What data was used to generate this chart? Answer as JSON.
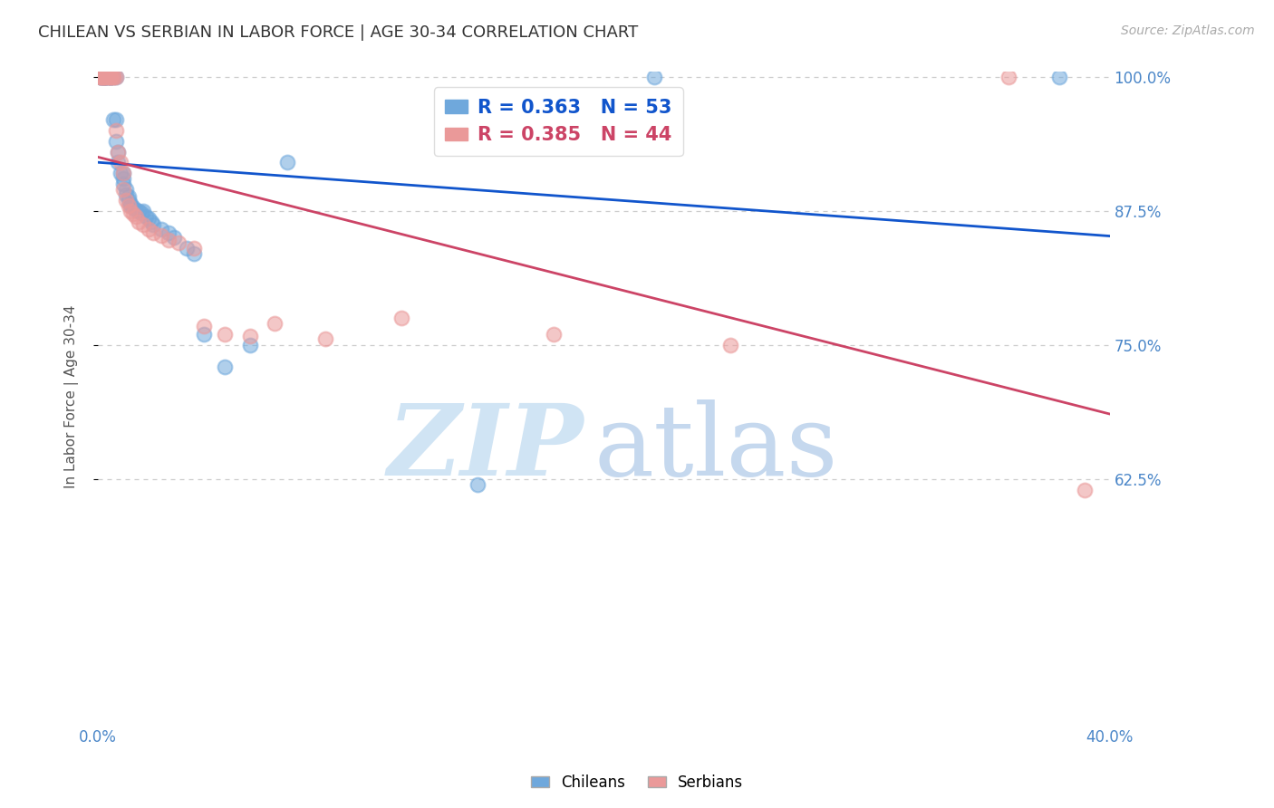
{
  "title": "CHILEAN VS SERBIAN IN LABOR FORCE | AGE 30-34 CORRELATION CHART",
  "source": "Source: ZipAtlas.com",
  "ylabel": "In Labor Force | Age 30-34",
  "xlim": [
    0.0,
    0.4
  ],
  "ylim": [
    0.4,
    1.005
  ],
  "xticks": [
    0.0,
    0.05,
    0.1,
    0.15,
    0.2,
    0.25,
    0.3,
    0.35,
    0.4
  ],
  "xtick_labels": [
    "0.0%",
    "",
    "",
    "",
    "",
    "",
    "",
    "",
    "40.0%"
  ],
  "ytick_labels": [
    "100.0%",
    "87.5%",
    "75.0%",
    "62.5%"
  ],
  "yticks": [
    1.0,
    0.875,
    0.75,
    0.625
  ],
  "chilean_color": "#6fa8dc",
  "serbian_color": "#ea9999",
  "chilean_line_color": "#1155cc",
  "serbian_line_color": "#cc4466",
  "chilean_R": 0.363,
  "chilean_N": 53,
  "serbian_R": 0.385,
  "serbian_N": 44,
  "legend_label_chilean": "Chileans",
  "legend_label_serbian": "Serbians",
  "background_color": "#ffffff",
  "chilean_x": [
    0.001,
    0.001,
    0.001,
    0.002,
    0.002,
    0.002,
    0.003,
    0.003,
    0.003,
    0.003,
    0.004,
    0.004,
    0.005,
    0.005,
    0.005,
    0.006,
    0.006,
    0.007,
    0.007,
    0.007,
    0.008,
    0.008,
    0.009,
    0.01,
    0.01,
    0.01,
    0.011,
    0.011,
    0.012,
    0.012,
    0.013,
    0.013,
    0.014,
    0.015,
    0.016,
    0.017,
    0.018,
    0.019,
    0.02,
    0.021,
    0.022,
    0.025,
    0.028,
    0.03,
    0.035,
    0.038,
    0.042,
    0.05,
    0.06,
    0.075,
    0.15,
    0.22,
    0.38
  ],
  "chilean_y": [
    1.0,
    1.0,
    1.0,
    1.0,
    1.0,
    1.0,
    1.0,
    1.0,
    1.0,
    1.0,
    1.0,
    1.0,
    1.0,
    1.0,
    1.0,
    1.0,
    0.96,
    1.0,
    0.96,
    0.94,
    0.93,
    0.92,
    0.91,
    0.91,
    0.905,
    0.9,
    0.895,
    0.89,
    0.888,
    0.885,
    0.882,
    0.88,
    0.878,
    0.876,
    0.875,
    0.873,
    0.875,
    0.87,
    0.868,
    0.865,
    0.862,
    0.858,
    0.855,
    0.85,
    0.84,
    0.835,
    0.76,
    0.73,
    0.75,
    0.92,
    0.62,
    1.0,
    1.0
  ],
  "serbian_x": [
    0.001,
    0.001,
    0.001,
    0.002,
    0.002,
    0.002,
    0.003,
    0.003,
    0.004,
    0.004,
    0.005,
    0.005,
    0.005,
    0.006,
    0.006,
    0.007,
    0.007,
    0.008,
    0.009,
    0.01,
    0.01,
    0.011,
    0.012,
    0.013,
    0.014,
    0.015,
    0.016,
    0.018,
    0.02,
    0.022,
    0.025,
    0.028,
    0.032,
    0.038,
    0.042,
    0.05,
    0.06,
    0.07,
    0.09,
    0.12,
    0.18,
    0.25,
    0.36,
    0.39
  ],
  "serbian_y": [
    1.0,
    1.0,
    1.0,
    1.0,
    1.0,
    1.0,
    1.0,
    1.0,
    1.0,
    1.0,
    1.0,
    1.0,
    1.0,
    1.0,
    1.0,
    1.0,
    0.95,
    0.93,
    0.92,
    0.91,
    0.895,
    0.885,
    0.88,
    0.875,
    0.872,
    0.87,
    0.865,
    0.862,
    0.858,
    0.855,
    0.852,
    0.848,
    0.845,
    0.84,
    0.768,
    0.76,
    0.758,
    0.77,
    0.756,
    0.775,
    0.76,
    0.75,
    1.0,
    0.615
  ]
}
